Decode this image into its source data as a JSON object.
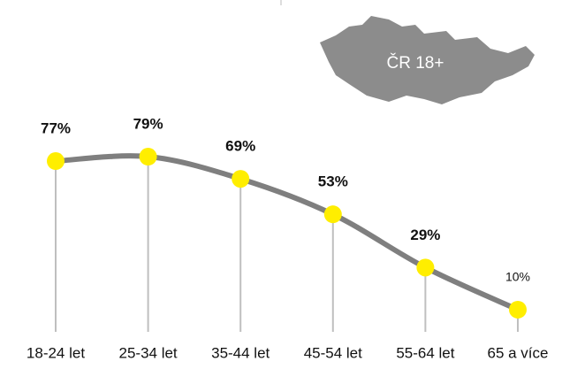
{
  "chart_data": {
    "type": "line",
    "annotation": "ČR 18+",
    "categories": [
      "18-24 let",
      "25-34 let",
      "35-44 let",
      "45-54 let",
      "55-64 let",
      "65 a více"
    ],
    "values": [
      77,
      79,
      69,
      53,
      29,
      10
    ],
    "value_labels": [
      "77%",
      "79%",
      "69%",
      "53%",
      "29%",
      "10%"
    ],
    "color": "#7f7f7f",
    "marker_color": "#ffee00",
    "ylim": [
      0,
      100
    ]
  }
}
